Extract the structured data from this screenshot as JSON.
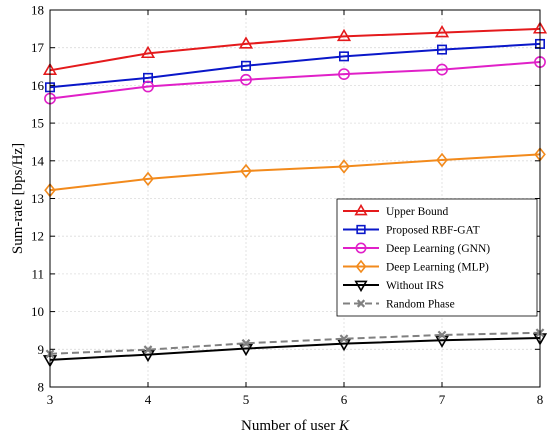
{
  "chart_data": {
    "type": "line",
    "xlabel": "Number of user ",
    "xlabel_var": "K",
    "ylabel": "Sum-rate [bps/Hz]",
    "xlim": [
      3,
      8
    ],
    "ylim": [
      8,
      18
    ],
    "xticks": [
      3,
      4,
      5,
      6,
      7,
      8
    ],
    "yticks": [
      8,
      9,
      10,
      11,
      12,
      13,
      14,
      15,
      16,
      17,
      18
    ],
    "grid": true,
    "legend_position": "center-right",
    "x": [
      3,
      4,
      5,
      6,
      7,
      8
    ],
    "series": [
      {
        "name": "Upper Bound",
        "color": "#e41a1c",
        "marker": "triangle-up",
        "dash": "solid",
        "values": [
          16.4,
          16.85,
          17.1,
          17.3,
          17.4,
          17.5
        ]
      },
      {
        "name": "Proposed RBF-GAT",
        "color": "#0a17c9",
        "marker": "square",
        "dash": "solid",
        "values": [
          15.95,
          16.2,
          16.52,
          16.77,
          16.95,
          17.1
        ]
      },
      {
        "name": "Deep Learning (GNN)",
        "color": "#e020c8",
        "marker": "circle",
        "dash": "solid",
        "values": [
          15.65,
          15.97,
          16.15,
          16.3,
          16.42,
          16.62
        ]
      },
      {
        "name": "Deep Learning (MLP)",
        "color": "#f28a1c",
        "marker": "diamond",
        "dash": "solid",
        "values": [
          13.22,
          13.52,
          13.73,
          13.85,
          14.02,
          14.17
        ]
      },
      {
        "name": "Without IRS",
        "color": "#000000",
        "marker": "triangle-down",
        "dash": "solid",
        "values": [
          8.72,
          8.86,
          9.02,
          9.15,
          9.24,
          9.3
        ]
      },
      {
        "name": "Random Phase",
        "color": "#808080",
        "marker": "x",
        "dash": "dashed",
        "values": [
          8.88,
          8.99,
          9.16,
          9.28,
          9.38,
          9.44
        ]
      }
    ]
  }
}
